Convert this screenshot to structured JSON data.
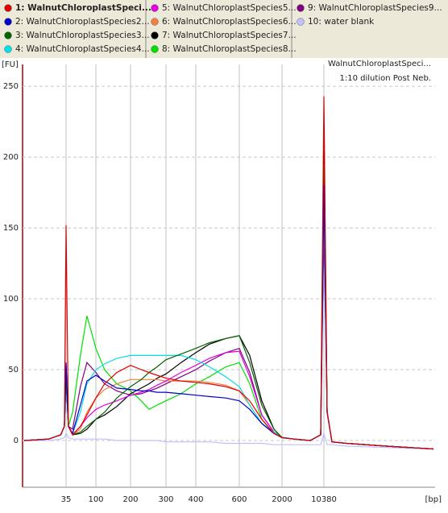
{
  "chart_data": {
    "type": "line",
    "annotations": [
      "WalnutChloroplastSpeci...",
      "1:10 dilution Post Neb."
    ],
    "y_label": "[FU]",
    "x_label": "[bp]",
    "x": [
      8,
      19,
      29,
      33,
      35,
      38,
      44,
      58,
      73,
      100,
      119,
      152,
      200,
      226,
      247,
      271,
      300,
      347,
      400,
      454,
      529,
      600,
      805,
      1132,
      1593,
      2000,
      3218,
      6060,
      9140,
      10380,
      11780,
      14240,
      25180,
      122500,
      768000
    ],
    "xlim": [
      7,
      800000
    ],
    "xticks": [
      35,
      100,
      200,
      300,
      400,
      600,
      2000,
      10380
    ],
    "ylim": [
      -33,
      270
    ],
    "yticks": [
      0,
      50,
      100,
      150,
      200,
      250
    ],
    "grid": true,
    "series": [
      {
        "name": "1: WalnutChloroplastSpeci...",
        "color": "#e00000",
        "values": [
          0,
          1,
          4,
          10,
          152,
          10,
          4,
          10,
          18,
          30,
          40,
          48,
          53,
          50,
          48,
          46,
          44,
          42,
          41,
          40,
          38,
          35,
          28,
          15,
          5,
          2,
          1,
          0,
          4,
          243,
          20,
          -1,
          -2,
          -4,
          -6
        ]
      },
      {
        "name": "2: WalnutChloroplastSpecies2...",
        "color": "#0000c8",
        "values": [
          0,
          1,
          4,
          10,
          55,
          10,
          5,
          25,
          42,
          46,
          42,
          37,
          36,
          35,
          35,
          34,
          34,
          33,
          32,
          31,
          30,
          28,
          22,
          12,
          5,
          2,
          1,
          0,
          4,
          180,
          20,
          -1,
          -2,
          -4,
          -6
        ]
      },
      {
        "name": "3: WalnutChloroplastSpecies3...",
        "color": "#006400",
        "values": [
          0,
          1,
          4,
          10,
          45,
          10,
          4,
          6,
          10,
          15,
          20,
          30,
          38,
          43,
          48,
          52,
          57,
          61,
          65,
          69,
          72,
          74,
          55,
          25,
          8,
          2,
          1,
          0,
          4,
          195,
          20,
          -1,
          -2,
          -4,
          -6
        ]
      },
      {
        "name": "4: WalnutChloroplastSpecies4...",
        "color": "#00e0e8",
        "values": [
          0,
          1,
          4,
          10,
          45,
          10,
          5,
          20,
          40,
          50,
          54,
          58,
          60,
          60,
          60,
          60,
          60,
          60,
          57,
          52,
          45,
          38,
          25,
          12,
          6,
          2,
          1,
          0,
          4,
          170,
          20,
          -1,
          -2,
          -4,
          -6
        ]
      },
      {
        "name": "5: WalnutChloroplastSpecies5...",
        "color": "#e000e0",
        "values": [
          0,
          1,
          4,
          10,
          45,
          10,
          4,
          10,
          16,
          22,
          25,
          28,
          32,
          34,
          36,
          39,
          42,
          48,
          53,
          58,
          62,
          63,
          45,
          18,
          6,
          2,
          1,
          0,
          4,
          175,
          20,
          -1,
          -2,
          -4,
          -6
        ]
      },
      {
        "name": "6: WalnutChloroplastSpecies6...",
        "color": "#f08040",
        "values": [
          0,
          1,
          4,
          10,
          45,
          10,
          4,
          8,
          20,
          30,
          36,
          40,
          43,
          43,
          43,
          43,
          42,
          42,
          42,
          41,
          39,
          35,
          25,
          12,
          5,
          2,
          1,
          0,
          4,
          165,
          20,
          -1,
          -2,
          -4,
          -6
        ]
      },
      {
        "name": "7: WalnutChloroplastSpecies7...",
        "color": "#000000",
        "values": [
          0,
          1,
          4,
          10,
          45,
          10,
          4,
          5,
          8,
          15,
          18,
          24,
          33,
          37,
          40,
          44,
          47,
          55,
          62,
          68,
          72,
          74,
          60,
          28,
          8,
          2,
          1,
          0,
          4,
          205,
          20,
          -1,
          -2,
          -4,
          -6
        ]
      },
      {
        "name": "8: WalnutChloroplastSpecies8...",
        "color": "#00e000",
        "values": [
          0,
          1,
          4,
          10,
          45,
          10,
          20,
          60,
          88,
          65,
          50,
          40,
          35,
          28,
          22,
          25,
          28,
          33,
          40,
          45,
          52,
          55,
          40,
          15,
          5,
          2,
          1,
          0,
          4,
          185,
          20,
          -1,
          -2,
          -4,
          -6
        ]
      },
      {
        "name": "9: WalnutChloroplastSpecies9...",
        "color": "#800080",
        "values": [
          0,
          1,
          4,
          10,
          53,
          10,
          8,
          38,
          55,
          48,
          40,
          35,
          32,
          33,
          35,
          37,
          40,
          45,
          50,
          56,
          62,
          65,
          48,
          18,
          6,
          2,
          1,
          0,
          4,
          150,
          20,
          -1,
          -2,
          -4,
          -6
        ]
      },
      {
        "name": "10: water blank",
        "color": "#c0c0ff",
        "values": [
          0,
          0,
          1,
          2,
          5,
          2,
          1,
          1,
          1,
          1,
          1,
          0,
          0,
          0,
          0,
          0,
          -1,
          -1,
          -1,
          -1,
          -2,
          -2,
          -2,
          -2,
          -3,
          -3,
          -3,
          -3,
          -3,
          5,
          -3,
          -3,
          -4,
          -5,
          -6
        ]
      }
    ]
  }
}
